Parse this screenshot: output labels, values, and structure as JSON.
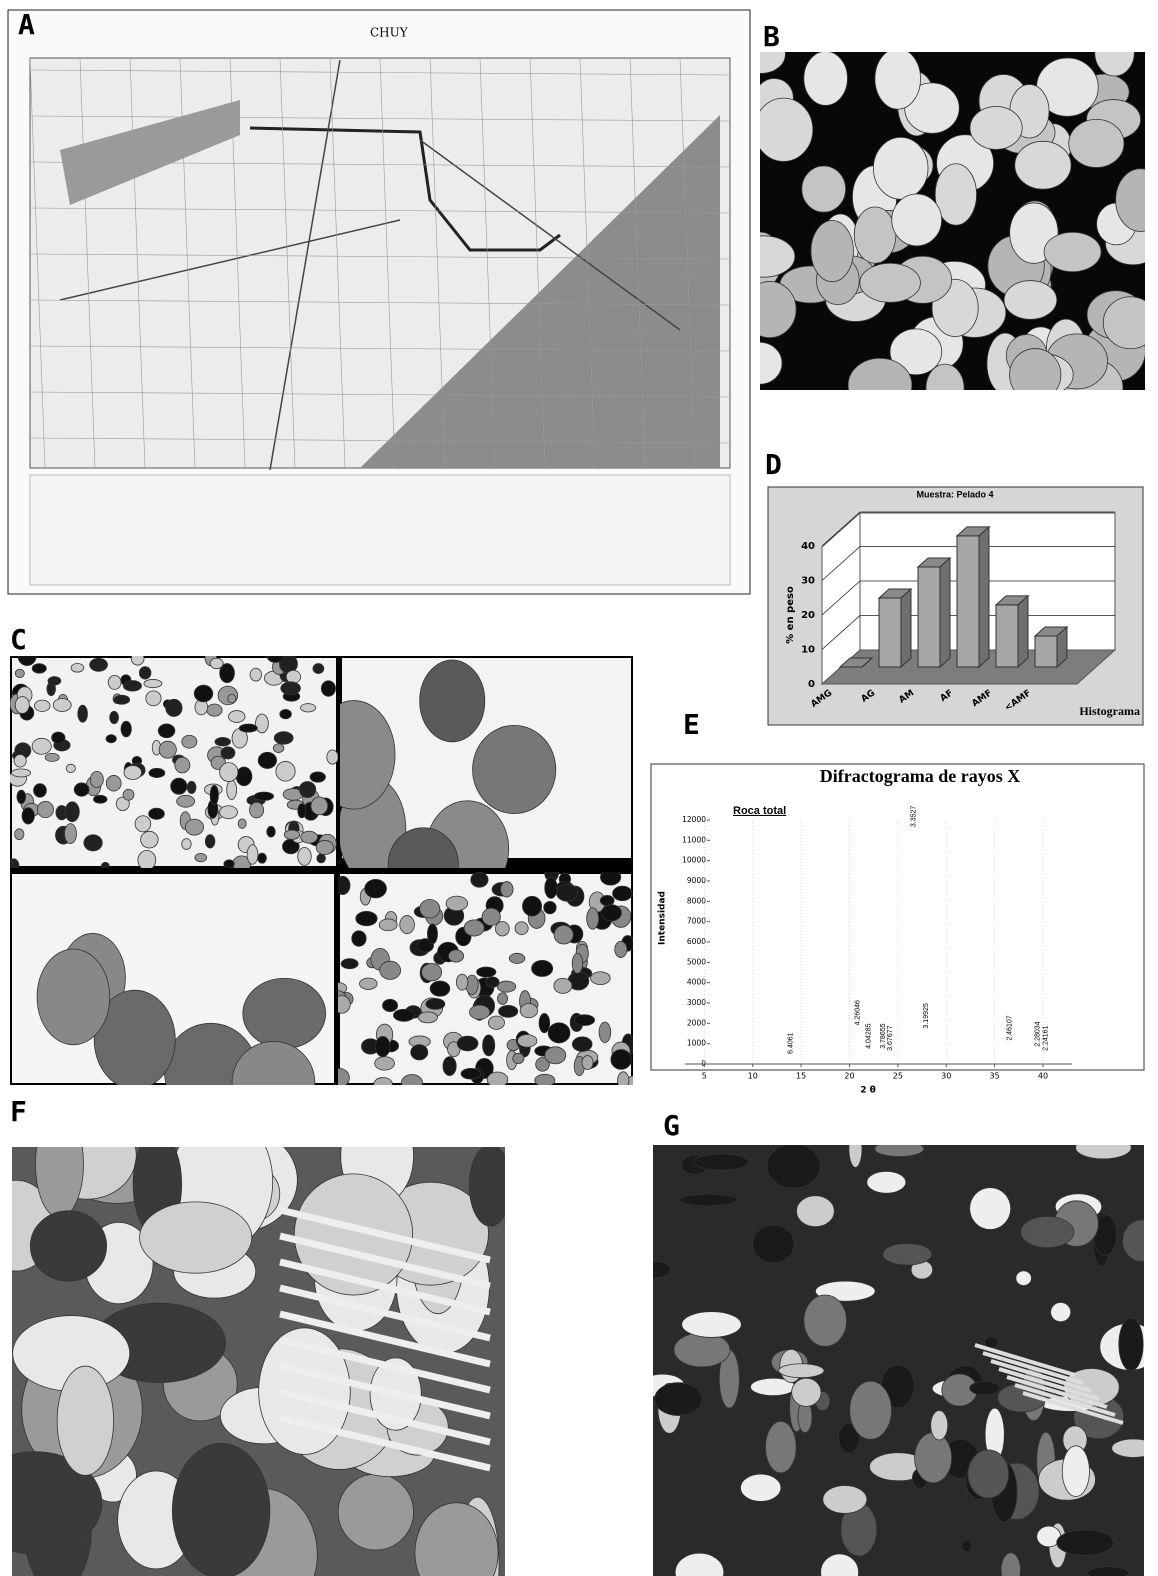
{
  "panel_labels": [
    "A",
    "B",
    "C",
    "D",
    "E",
    "F",
    "G"
  ],
  "map_title": "CHUY",
  "chart_data": [
    {
      "type": "bar3d",
      "title": "Muestra: Pelado 4",
      "y_label": "% en peso",
      "x_label": "Histograma",
      "categories": [
        "AMG",
        "AG",
        "AM",
        "AF",
        "AMF",
        "<AMF"
      ],
      "values": [
        0,
        20,
        29,
        38,
        18,
        9
      ],
      "color": "#a6a6a6",
      "ylim": [
        0,
        40
      ],
      "yticks": [
        0,
        10,
        20,
        30,
        40
      ],
      "grid": true
    },
    {
      "type": "line",
      "title": "Difractograma de rayos X",
      "subtitle": "Roca total",
      "y_label": "Intensidad",
      "x_label": "2 θ",
      "x": [
        3,
        4,
        5,
        6,
        7,
        8,
        9,
        10,
        11,
        12,
        13,
        13.5,
        13.9,
        14.3,
        15,
        16,
        17,
        18,
        19,
        20,
        20.5,
        20.85,
        21.2,
        21.7,
        22.0,
        22.3,
        23.0,
        23.5,
        23.8,
        24.0,
        24.2,
        24.5,
        25,
        26,
        26.3,
        26.65,
        27.0,
        27.5,
        27.9,
        28.3,
        29,
        30,
        31,
        32,
        33,
        34,
        35,
        36,
        36.2,
        36.55,
        36.9,
        37.5,
        38,
        39,
        39.2,
        39.45,
        39.7,
        40.0,
        40.3,
        40.6,
        41,
        42
      ],
      "series": [
        {
          "name": "Roca total",
          "color": "#555555",
          "values": [
            120,
            100,
            90,
            80,
            80,
            80,
            70,
            70,
            70,
            70,
            70,
            80,
            350,
            80,
            70,
            70,
            80,
            80,
            90,
            120,
            200,
            1750,
            250,
            200,
            600,
            200,
            150,
            600,
            200,
            200,
            500,
            150,
            150,
            200,
            500,
            11500,
            500,
            300,
            1600,
            300,
            150,
            200,
            100,
            100,
            100,
            100,
            100,
            150,
            300,
            1000,
            200,
            150,
            100,
            100,
            200,
            700,
            200,
            150,
            500,
            100,
            80,
            70
          ]
        }
      ],
      "annotations": [
        {
          "x": 13.9,
          "text": "6.4061"
        },
        {
          "x": 20.85,
          "text": "4.26046"
        },
        {
          "x": 22.0,
          "text": "4.04285"
        },
        {
          "x": 23.5,
          "text": "3.78655"
        },
        {
          "x": 24.2,
          "text": "3.67677"
        },
        {
          "x": 26.65,
          "text": "3.3527"
        },
        {
          "x": 27.9,
          "text": "3.19925"
        },
        {
          "x": 36.55,
          "text": "2.46107"
        },
        {
          "x": 39.45,
          "text": "2.28034"
        },
        {
          "x": 40.3,
          "text": "2.24161"
        }
      ],
      "xlim": [
        3,
        43
      ],
      "xticks": [
        5,
        10,
        15,
        20,
        25,
        30,
        35,
        40
      ],
      "ylim": [
        0,
        12000
      ],
      "yticks": [
        0,
        1000,
        2000,
        3000,
        4000,
        5000,
        6000,
        7000,
        8000,
        9000,
        10000,
        11000,
        12000
      ],
      "grid": true
    }
  ]
}
